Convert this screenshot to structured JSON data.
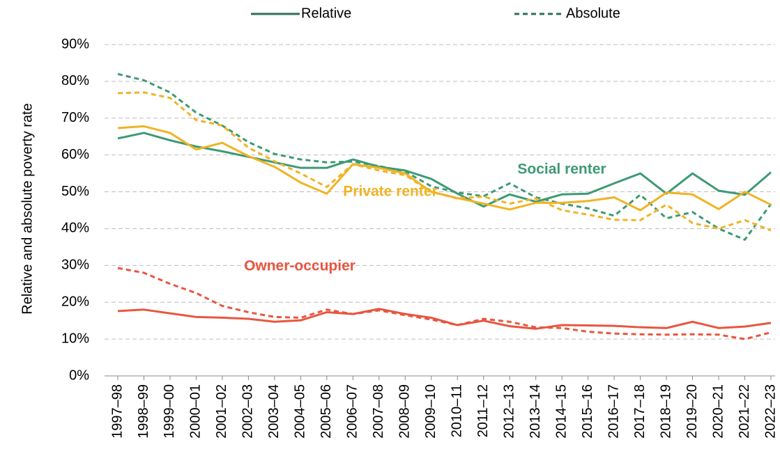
{
  "chart_data": {
    "type": "line",
    "ylabel": "Relative and absolute poverty rate",
    "legend": [
      "Relative",
      "Absolute"
    ],
    "categories": [
      "1997–98",
      "1998–99",
      "1999–00",
      "2000–01",
      "2001–02",
      "2002–03",
      "2003–04",
      "2004–05",
      "2005–06",
      "2006–07",
      "2007–08",
      "2008–09",
      "2009–10",
      "2010–11",
      "2011–12",
      "2012–13",
      "2013–14",
      "2014–15",
      "2015–16",
      "2016–17",
      "2017–18",
      "2018–19",
      "2019–20",
      "2020–21",
      "2021–22",
      "2022–23"
    ],
    "groups": [
      {
        "name": "Social renter",
        "color": "#3d9a73",
        "relative": [
          64.5,
          66,
          64,
          62.3,
          61,
          59.5,
          58,
          56.5,
          56.5,
          58.8,
          56.8,
          55.8,
          53.5,
          49.5,
          46,
          49.3,
          47.3,
          49.3,
          49.5,
          52.3,
          55,
          49.5,
          55,
          50.3,
          49.2,
          55.3
        ],
        "absolute": [
          82,
          80.3,
          77,
          71.5,
          68,
          63.5,
          60.3,
          58.8,
          58,
          58.2,
          57,
          55.5,
          51.5,
          49.8,
          48.8,
          52.3,
          48.5,
          46.8,
          45.5,
          43.5,
          49.2,
          42.8,
          44.5,
          40,
          37,
          46.7
        ]
      },
      {
        "name": "Private renter",
        "color": "#f0b323",
        "relative": [
          67.3,
          67.8,
          66,
          61.5,
          63.3,
          59.7,
          56.8,
          52.5,
          49.5,
          57.5,
          56.5,
          55,
          50,
          48.3,
          46.8,
          45.2,
          47,
          47,
          47.5,
          48.5,
          45,
          49.8,
          49.3,
          45.3,
          50,
          46.5
        ],
        "absolute": [
          76.8,
          77,
          75.5,
          69.5,
          68,
          62,
          58.3,
          55,
          51.3,
          57.5,
          55.8,
          54.5,
          50,
          48.2,
          48.7,
          46.8,
          48.2,
          45,
          43.8,
          42.4,
          42.3,
          46.5,
          41.5,
          40,
          42.3,
          39.5
        ]
      },
      {
        "name": "Owner-occupier",
        "color": "#e8563f",
        "relative": [
          17.6,
          18,
          17,
          16,
          15.8,
          15.5,
          14.7,
          15.1,
          17.3,
          16.8,
          18.2,
          16.8,
          15.8,
          13.8,
          15,
          13.5,
          12.8,
          13.8,
          13.7,
          13.6,
          13.2,
          13,
          14.7,
          13,
          13.4,
          14.4
        ],
        "absolute": [
          29.3,
          28,
          25,
          22.5,
          19,
          17.3,
          16,
          15.8,
          18,
          16.8,
          17.8,
          16.5,
          15.3,
          13.8,
          15.5,
          14.7,
          13.2,
          13,
          12,
          11.5,
          11.3,
          11.2,
          11.3,
          11.2,
          10,
          11.8
        ]
      }
    ],
    "ylim": [
      0,
      90
    ],
    "yticks": [
      {
        "value": 0,
        "label": "0%"
      },
      {
        "value": 10,
        "label": "10%"
      },
      {
        "value": 20,
        "label": "20%"
      },
      {
        "value": 30,
        "label": "30%"
      },
      {
        "value": 40,
        "label": "40%"
      },
      {
        "value": 50,
        "label": "50%"
      },
      {
        "value": 60,
        "label": "60%"
      },
      {
        "value": 70,
        "label": "70%"
      },
      {
        "value": 80,
        "label": "80%"
      },
      {
        "value": 90,
        "label": "90%"
      }
    ],
    "grid": true
  }
}
